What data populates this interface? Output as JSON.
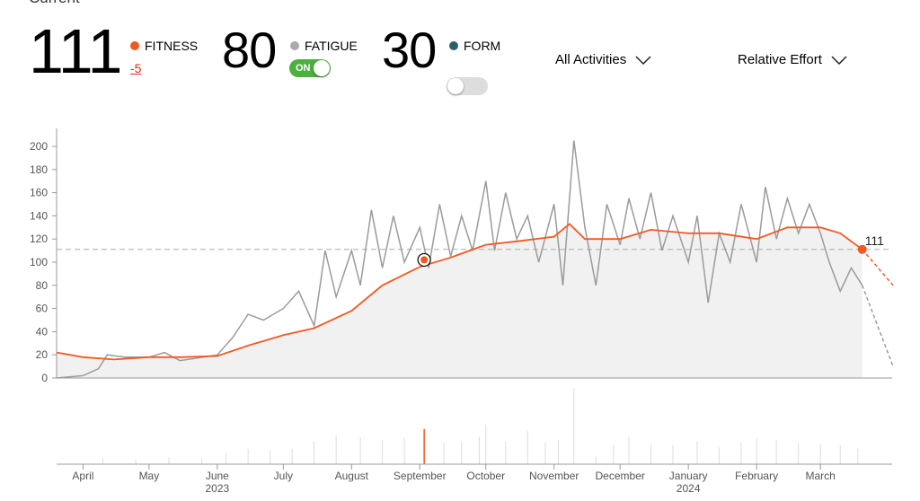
{
  "header": {
    "section_label": "Current"
  },
  "stats": {
    "fitness": {
      "value": "111",
      "label": "FITNESS",
      "change": "-5",
      "color": "#f05a22"
    },
    "fatigue": {
      "value": "80",
      "label": "FATIGUE",
      "toggle": "ON",
      "toggle_on": true,
      "color": "#aaaaaa"
    },
    "form": {
      "value": "30",
      "label": "FORM",
      "toggle_on": false,
      "color": "#2f5d6b"
    }
  },
  "filters": {
    "activities": "All Activities",
    "metric": "Relative Effort"
  },
  "chart_data": {
    "type": "line",
    "ylim": [
      0,
      200
    ],
    "yticks": [
      "0",
      "20",
      "40",
      "60",
      "80",
      "100",
      "120",
      "140",
      "160",
      "180",
      "200"
    ],
    "grid": false,
    "reference_value": 111,
    "current_label": "111",
    "highlight": {
      "date": "2023-09-03",
      "value": 102
    },
    "x_ticks": [
      {
        "date": "2023-04-01",
        "label": "April",
        "year": ""
      },
      {
        "date": "2023-05-01",
        "label": "May",
        "year": ""
      },
      {
        "date": "2023-06-01",
        "label": "June",
        "year": "2023"
      },
      {
        "date": "2023-07-01",
        "label": "July",
        "year": ""
      },
      {
        "date": "2023-08-01",
        "label": "August",
        "year": ""
      },
      {
        "date": "2023-09-01",
        "label": "September",
        "year": ""
      },
      {
        "date": "2023-10-01",
        "label": "October",
        "year": ""
      },
      {
        "date": "2023-11-01",
        "label": "November",
        "year": ""
      },
      {
        "date": "2023-12-01",
        "label": "December",
        "year": ""
      },
      {
        "date": "2024-01-01",
        "label": "January",
        "year": "2024"
      },
      {
        "date": "2024-02-01",
        "label": "February",
        "year": ""
      },
      {
        "date": "2024-03-01",
        "label": "March",
        "year": ""
      }
    ],
    "series": [
      {
        "key": "fitness",
        "color": "#f05a22",
        "points": [
          [
            "2023-03-20",
            22
          ],
          [
            "2023-04-01",
            18
          ],
          [
            "2023-04-15",
            16
          ],
          [
            "2023-05-01",
            18
          ],
          [
            "2023-05-15",
            18
          ],
          [
            "2023-06-01",
            19
          ],
          [
            "2023-06-15",
            28
          ],
          [
            "2023-07-01",
            37
          ],
          [
            "2023-07-15",
            43
          ],
          [
            "2023-08-01",
            58
          ],
          [
            "2023-08-15",
            80
          ],
          [
            "2023-09-01",
            96
          ],
          [
            "2023-09-15",
            104
          ],
          [
            "2023-10-01",
            115
          ],
          [
            "2023-10-15",
            118
          ],
          [
            "2023-11-01",
            122
          ],
          [
            "2023-11-08",
            133
          ],
          [
            "2023-11-15",
            120
          ],
          [
            "2023-12-01",
            120
          ],
          [
            "2023-12-15",
            128
          ],
          [
            "2024-01-01",
            125
          ],
          [
            "2024-01-15",
            125
          ],
          [
            "2024-02-01",
            120
          ],
          [
            "2024-02-15",
            130
          ],
          [
            "2024-03-01",
            130
          ],
          [
            "2024-03-10",
            125
          ],
          [
            "2024-03-20",
            111
          ]
        ],
        "projection": [
          [
            "2024-03-20",
            111
          ],
          [
            "2024-04-03",
            80
          ]
        ]
      },
      {
        "key": "fatigue",
        "color": "#9b9b9b",
        "points": [
          [
            "2023-03-20",
            0
          ],
          [
            "2023-04-01",
            2
          ],
          [
            "2023-04-08",
            8
          ],
          [
            "2023-04-12",
            20
          ],
          [
            "2023-04-20",
            18
          ],
          [
            "2023-05-01",
            18
          ],
          [
            "2023-05-08",
            22
          ],
          [
            "2023-05-15",
            15
          ],
          [
            "2023-05-22",
            17
          ],
          [
            "2023-06-01",
            20
          ],
          [
            "2023-06-08",
            35
          ],
          [
            "2023-06-15",
            55
          ],
          [
            "2023-06-22",
            50
          ],
          [
            "2023-07-01",
            60
          ],
          [
            "2023-07-08",
            75
          ],
          [
            "2023-07-15",
            45
          ],
          [
            "2023-07-20",
            110
          ],
          [
            "2023-07-25",
            70
          ],
          [
            "2023-08-01",
            110
          ],
          [
            "2023-08-05",
            80
          ],
          [
            "2023-08-10",
            145
          ],
          [
            "2023-08-15",
            95
          ],
          [
            "2023-08-20",
            140
          ],
          [
            "2023-08-25",
            100
          ],
          [
            "2023-09-01",
            130
          ],
          [
            "2023-09-05",
            95
          ],
          [
            "2023-09-10",
            150
          ],
          [
            "2023-09-15",
            105
          ],
          [
            "2023-09-20",
            140
          ],
          [
            "2023-09-25",
            110
          ],
          [
            "2023-10-01",
            170
          ],
          [
            "2023-10-05",
            110
          ],
          [
            "2023-10-10",
            160
          ],
          [
            "2023-10-15",
            120
          ],
          [
            "2023-10-20",
            140
          ],
          [
            "2023-10-25",
            100
          ],
          [
            "2023-11-01",
            150
          ],
          [
            "2023-11-05",
            80
          ],
          [
            "2023-11-10",
            205
          ],
          [
            "2023-11-15",
            130
          ],
          [
            "2023-11-20",
            80
          ],
          [
            "2023-11-25",
            150
          ],
          [
            "2023-12-01",
            115
          ],
          [
            "2023-12-05",
            155
          ],
          [
            "2023-12-10",
            120
          ],
          [
            "2023-12-15",
            160
          ],
          [
            "2023-12-20",
            110
          ],
          [
            "2023-12-25",
            140
          ],
          [
            "2024-01-01",
            100
          ],
          [
            "2024-01-05",
            140
          ],
          [
            "2024-01-10",
            65
          ],
          [
            "2024-01-15",
            125
          ],
          [
            "2024-01-20",
            100
          ],
          [
            "2024-01-25",
            150
          ],
          [
            "2024-02-01",
            100
          ],
          [
            "2024-02-05",
            165
          ],
          [
            "2024-02-10",
            120
          ],
          [
            "2024-02-15",
            155
          ],
          [
            "2024-02-20",
            125
          ],
          [
            "2024-02-25",
            150
          ],
          [
            "2024-03-01",
            125
          ],
          [
            "2024-03-05",
            100
          ],
          [
            "2024-03-10",
            75
          ],
          [
            "2024-03-15",
            95
          ],
          [
            "2024-03-20",
            80
          ]
        ],
        "projection": [
          [
            "2024-03-20",
            80
          ],
          [
            "2024-04-03",
            10
          ]
        ]
      }
    ],
    "effort_bars": [
      [
        "2023-04-10",
        8
      ],
      [
        "2023-04-25",
        6
      ],
      [
        "2023-05-10",
        9
      ],
      [
        "2023-05-25",
        8
      ],
      [
        "2023-06-05",
        15
      ],
      [
        "2023-06-15",
        20
      ],
      [
        "2023-06-25",
        18
      ],
      [
        "2023-07-05",
        20
      ],
      [
        "2023-07-15",
        30
      ],
      [
        "2023-07-25",
        38
      ],
      [
        "2023-08-05",
        35
      ],
      [
        "2023-08-15",
        32
      ],
      [
        "2023-08-25",
        34
      ],
      [
        "2023-09-03",
        46
      ],
      [
        "2023-09-12",
        28
      ],
      [
        "2023-09-20",
        30
      ],
      [
        "2023-09-28",
        36
      ],
      [
        "2023-10-01",
        52
      ],
      [
        "2023-10-10",
        30
      ],
      [
        "2023-10-20",
        44
      ],
      [
        "2023-10-28",
        28
      ],
      [
        "2023-11-03",
        32
      ],
      [
        "2023-11-10",
        100
      ],
      [
        "2023-11-20",
        10
      ],
      [
        "2023-11-28",
        25
      ],
      [
        "2023-12-05",
        36
      ],
      [
        "2023-12-15",
        26
      ],
      [
        "2023-12-25",
        25
      ],
      [
        "2024-01-05",
        30
      ],
      [
        "2024-01-15",
        22
      ],
      [
        "2024-01-25",
        28
      ],
      [
        "2024-02-01",
        34
      ],
      [
        "2024-02-10",
        32
      ],
      [
        "2024-02-20",
        28
      ],
      [
        "2024-03-01",
        26
      ],
      [
        "2024-03-10",
        24
      ],
      [
        "2024-03-18",
        20
      ]
    ]
  }
}
